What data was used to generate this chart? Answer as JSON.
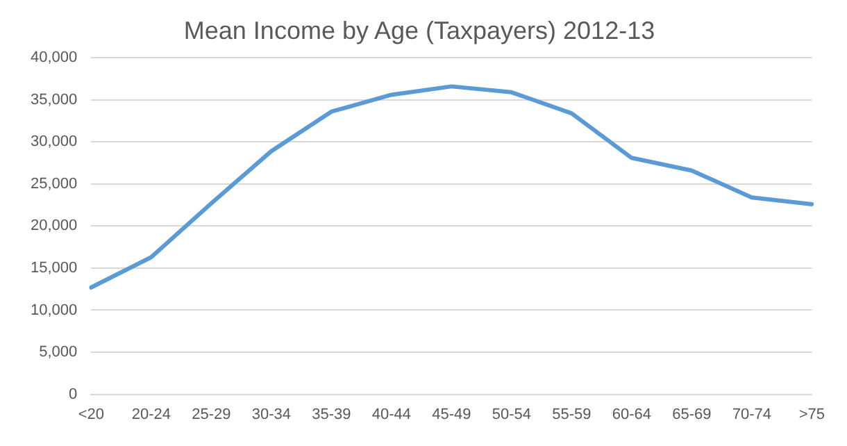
{
  "chart_data": {
    "type": "line",
    "title": "Mean Income by Age (Taxpayers) 2012-13",
    "categories": [
      "<20",
      "20-24",
      "25-29",
      "30-34",
      "35-39",
      "40-44",
      "45-49",
      "50-54",
      "55-59",
      "60-64",
      "65-69",
      "70-74",
      ">75"
    ],
    "series": [
      {
        "color": "#5b9bd5",
        "values": [
          12700,
          16300,
          22700,
          28900,
          33600,
          35600,
          36600,
          35900,
          33400,
          28100,
          26600,
          23400,
          22600
        ]
      }
    ],
    "ylim": [
      0,
      40000
    ],
    "yticks": [
      0,
      {
        "value": 5000,
        "label": "5,000"
      },
      {
        "value": 10000,
        "label": "10,000"
      },
      {
        "value": 15000,
        "label": "15,000"
      },
      {
        "value": 20000,
        "label": "20,000"
      },
      {
        "value": 25000,
        "label": "25,000"
      },
      {
        "value": 30000,
        "label": "30,000"
      },
      {
        "value": 35000,
        "label": "35,000"
      },
      {
        "value": 40000,
        "label": "40,000"
      }
    ],
    "grid": "y",
    "legend": false,
    "marker": "none",
    "line_style": "solid"
  }
}
